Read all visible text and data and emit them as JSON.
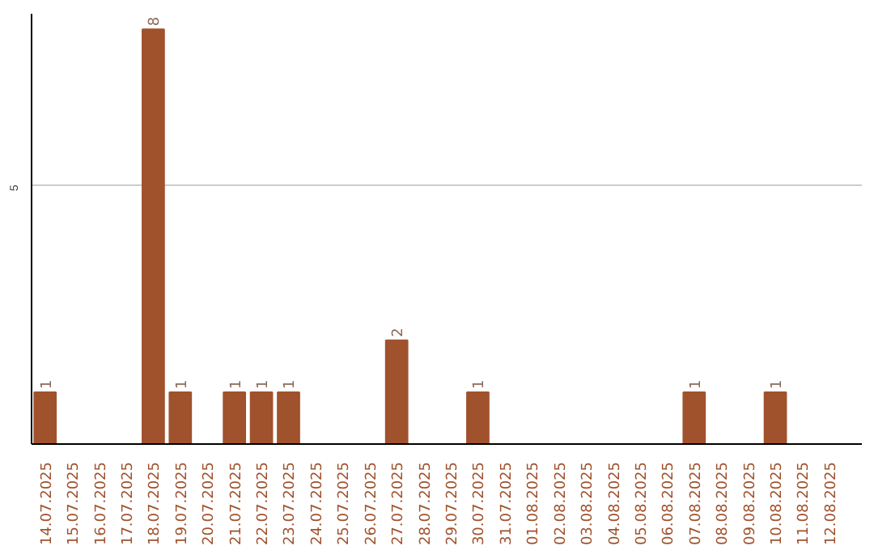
{
  "chart_data": {
    "type": "bar",
    "categories": [
      "14.07.2025",
      "15.07.2025",
      "16.07.2025",
      "17.07.2025",
      "18.07.2025",
      "19.07.2025",
      "20.07.2025",
      "21.07.2025",
      "22.07.2025",
      "23.07.2025",
      "24.07.2025",
      "25.07.2025",
      "26.07.2025",
      "27.07.2025",
      "28.07.2025",
      "29.07.2025",
      "30.07.2025",
      "31.07.2025",
      "01.08.2025",
      "02.08.2025",
      "03.08.2025",
      "04.08.2025",
      "05.08.2025",
      "06.08.2025",
      "07.08.2025",
      "08.08.2025",
      "09.08.2025",
      "10.08.2025",
      "11.08.2025",
      "12.08.2025"
    ],
    "values": [
      1,
      0,
      0,
      0,
      8,
      1,
      0,
      1,
      1,
      1,
      0,
      0,
      0,
      2,
      0,
      0,
      1,
      0,
      0,
      0,
      0,
      0,
      0,
      0,
      1,
      0,
      0,
      1,
      0,
      0
    ],
    "value_labels": [
      "1",
      null,
      null,
      null,
      "8",
      "1",
      null,
      "1",
      "1",
      "1",
      null,
      null,
      null,
      "2",
      null,
      null,
      "1",
      null,
      null,
      null,
      null,
      null,
      null,
      null,
      "1",
      null,
      null,
      "1",
      null,
      null
    ],
    "color": "#a0522d",
    "ylim": [
      0,
      8.3
    ],
    "yticks": [
      5
    ],
    "grid": "y"
  }
}
